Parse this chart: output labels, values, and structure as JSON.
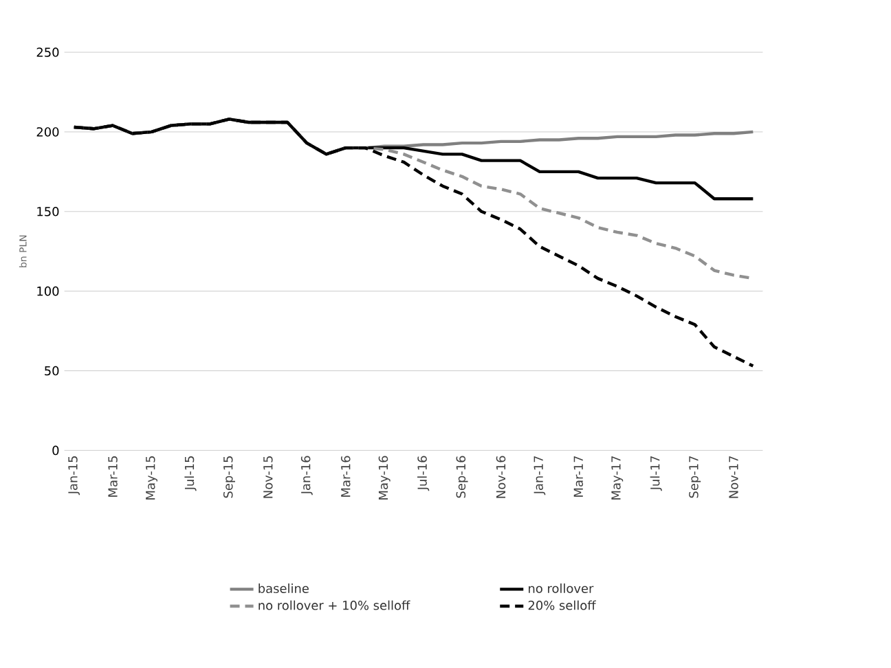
{
  "chart_data": {
    "type": "line",
    "ylabel": "bn PLN",
    "categories": [
      "Jan-15",
      null,
      "Mar-15",
      null,
      "May-15",
      null,
      "Jul-15",
      null,
      "Sep-15",
      null,
      "Nov-15",
      null,
      "Jan-16",
      null,
      "Mar-16",
      null,
      "May-16",
      null,
      "Jul-16",
      null,
      "Sep-16",
      null,
      "Nov-16",
      null,
      "Jan-17",
      null,
      "Mar-17",
      null,
      "May-17",
      null,
      "Jul-17",
      null,
      "Sep-17",
      null,
      "Nov-17",
      null
    ],
    "series": [
      {
        "name": "baseline",
        "color": "#808080",
        "line_style": "solid",
        "values": [
          203,
          202,
          204,
          199,
          200,
          204,
          205,
          205,
          208,
          206,
          206,
          206,
          193,
          186,
          190,
          190,
          191,
          191,
          192,
          192,
          193,
          193,
          194,
          194,
          195,
          195,
          196,
          196,
          197,
          197,
          197,
          198,
          198,
          199,
          199,
          200
        ]
      },
      {
        "name": "no rollover",
        "color": "#000000",
        "line_style": "solid",
        "values": [
          203,
          202,
          204,
          199,
          200,
          204,
          205,
          205,
          208,
          206,
          206,
          206,
          193,
          186,
          190,
          190,
          190,
          190,
          188,
          186,
          186,
          182,
          182,
          182,
          175,
          175,
          175,
          171,
          171,
          171,
          168,
          168,
          168,
          158,
          158,
          158
        ]
      },
      {
        "name": "no rollover + 10% selloff",
        "color": "#909090",
        "line_style": "dashed",
        "values": [
          203,
          202,
          204,
          199,
          200,
          204,
          205,
          205,
          208,
          206,
          206,
          206,
          193,
          186,
          190,
          190,
          189,
          186,
          181,
          176,
          172,
          166,
          164,
          161,
          152,
          149,
          146,
          140,
          137,
          135,
          130,
          127,
          122,
          113,
          110,
          108
        ]
      },
      {
        "name": "20% selloff",
        "color": "#000000",
        "line_style": "dashed",
        "values": [
          203,
          202,
          204,
          199,
          200,
          204,
          205,
          205,
          208,
          206,
          206,
          206,
          193,
          186,
          190,
          190,
          185,
          181,
          173,
          166,
          161,
          150,
          145,
          139,
          128,
          122,
          116,
          108,
          103,
          97,
          90,
          84,
          79,
          65,
          59,
          53
        ]
      }
    ],
    "ylim": [
      0,
      250
    ],
    "yticks": [
      0,
      50,
      100,
      150,
      200,
      250
    ],
    "grid": "y",
    "legend": "bottom",
    "marker": "none"
  }
}
